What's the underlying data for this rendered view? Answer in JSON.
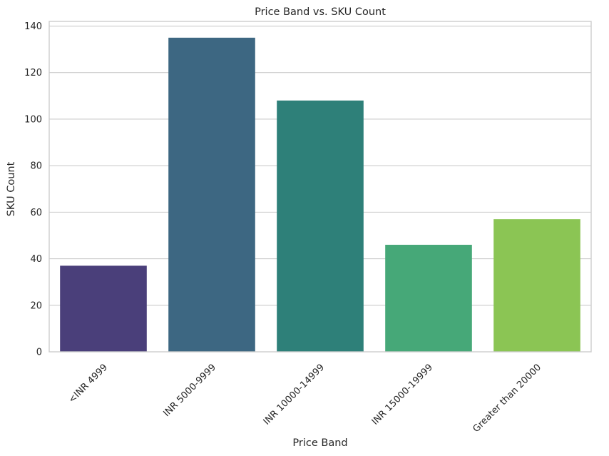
{
  "chart_data": {
    "type": "bar",
    "title": "Price Band vs. SKU Count",
    "xlabel": "Price Band",
    "ylabel": "SKU Count",
    "categories": [
      "<INR 4999",
      "INR 5000-9999",
      "INR 10000-14999",
      "INR 15000-19999",
      "Greater than 20000"
    ],
    "values": [
      37,
      135,
      108,
      46,
      57
    ],
    "colors": [
      "#4a3f7a",
      "#3d6782",
      "#2e8079",
      "#46a878",
      "#8bc554"
    ],
    "ylim": [
      0,
      142
    ],
    "yticks": [
      0,
      20,
      40,
      60,
      80,
      100,
      120,
      140
    ],
    "xtick_rotation_deg": 45,
    "grid": "horizontal",
    "legend": "none"
  }
}
